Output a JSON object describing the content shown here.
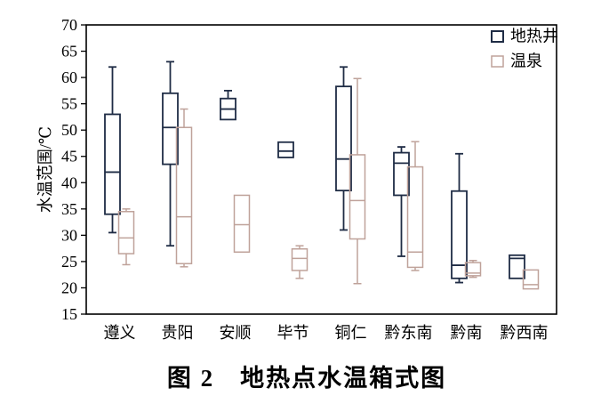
{
  "figure": {
    "caption": "图 2　地热点水温箱式图"
  },
  "chart_data": {
    "type": "boxplot",
    "title": "",
    "xlabel": "",
    "ylabel": "水温范围/℃",
    "ylim": [
      15,
      70
    ],
    "yticks": [
      15,
      20,
      25,
      30,
      35,
      40,
      45,
      50,
      55,
      60,
      65,
      70
    ],
    "grid": false,
    "legend_position": "top-right-inside",
    "categories": [
      "遵义",
      "贵阳",
      "安顺",
      "毕节",
      "铜仁",
      "黔东南",
      "黔南",
      "黔西南"
    ],
    "series": [
      {
        "name": "地热井",
        "key": "geothermal-well",
        "color": "#1f2c45",
        "boxes": [
          {
            "low": 30.5,
            "q1": 34,
            "median": 42,
            "q3": 53,
            "high": 62
          },
          {
            "low": 28,
            "q1": 43.5,
            "median": 50.5,
            "q3": 57,
            "high": 63
          },
          {
            "low": null,
            "q1": 52,
            "median": 54,
            "q3": 56,
            "high": 57.5
          },
          {
            "low": null,
            "q1": 44.8,
            "median": 46,
            "q3": 47.7,
            "high": null
          },
          {
            "low": 31,
            "q1": 38.5,
            "median": 44.5,
            "q3": 58.3,
            "high": 62
          },
          {
            "low": 26,
            "q1": 37.6,
            "median": 43.7,
            "q3": 45.7,
            "high": 46.8
          },
          {
            "low": 21,
            "q1": 21.8,
            "median": 24.3,
            "q3": 38.4,
            "high": 45.5
          },
          {
            "low": null,
            "q1": 21.8,
            "median": 25.6,
            "q3": 26.2,
            "high": null
          }
        ]
      },
      {
        "name": "温泉",
        "key": "hot-spring",
        "color": "#bfa29a",
        "boxes": [
          {
            "low": 24.4,
            "q1": 26.5,
            "median": 29.5,
            "q3": 34.5,
            "high": 35
          },
          {
            "low": 24,
            "q1": 24.6,
            "median": 33.5,
            "q3": 50.5,
            "high": 54
          },
          {
            "low": null,
            "q1": 26.8,
            "median": 32,
            "q3": 37.6,
            "high": null
          },
          {
            "low": 21.8,
            "q1": 23.3,
            "median": 25.6,
            "q3": 27.4,
            "high": 28
          },
          {
            "low": 20.8,
            "q1": 29.3,
            "median": 36.6,
            "q3": 45.3,
            "high": 59.8
          },
          {
            "low": 23.3,
            "q1": 23.9,
            "median": 26.8,
            "q3": 43,
            "high": 47.8
          },
          {
            "low": 22,
            "q1": 22.3,
            "median": 22.8,
            "q3": 24.8,
            "high": 25.2
          },
          {
            "low": null,
            "q1": 19.8,
            "median": 20.6,
            "q3": 23.4,
            "high": null
          }
        ]
      }
    ]
  }
}
